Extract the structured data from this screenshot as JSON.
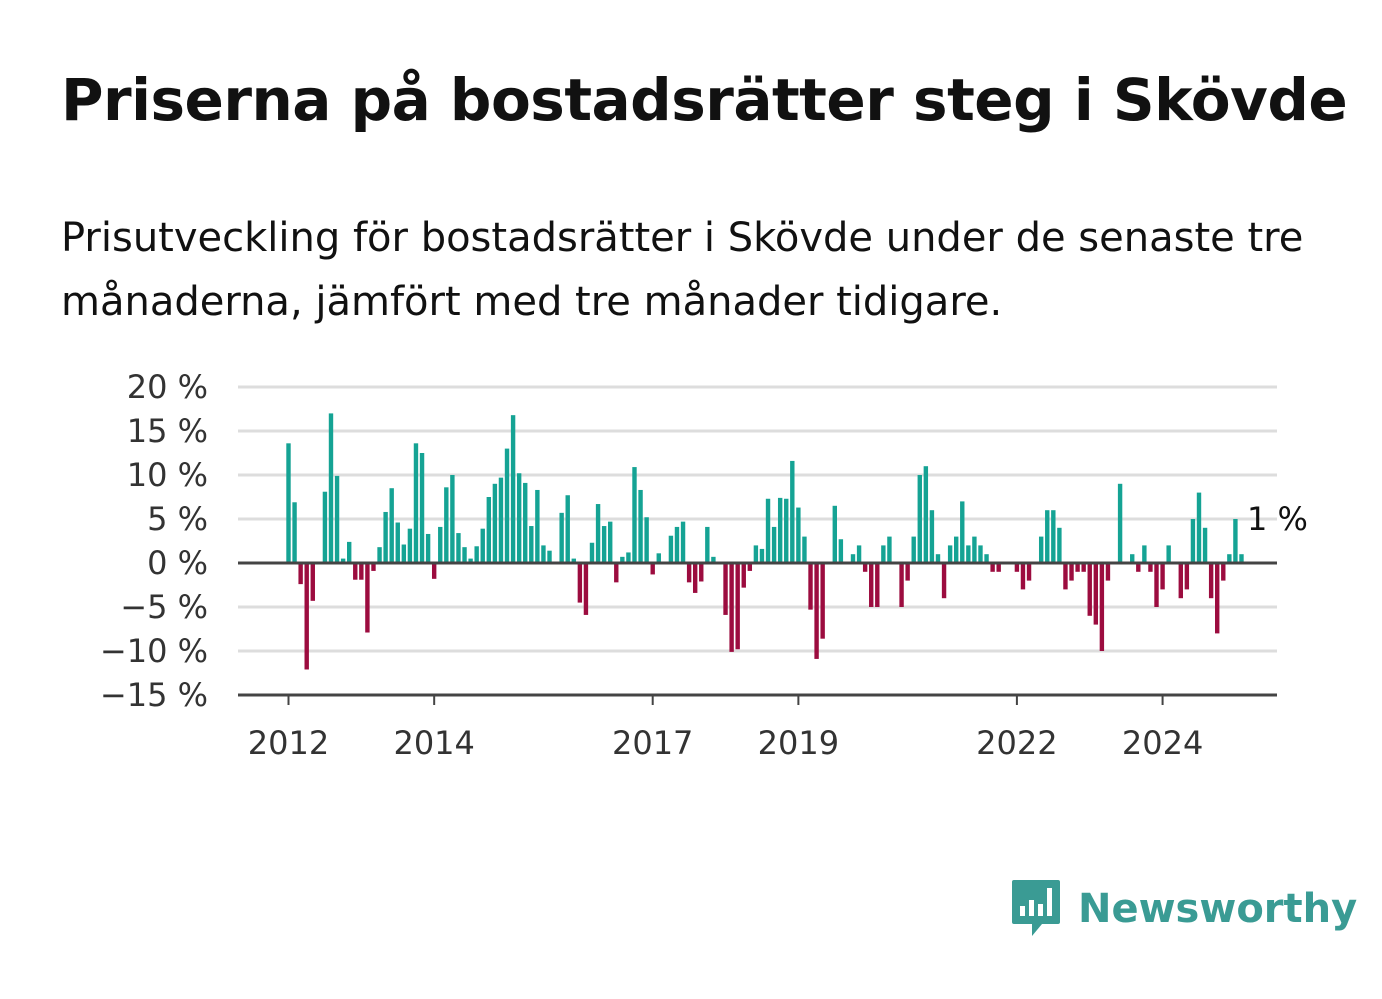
{
  "title": "Priserna på bostadsrätter steg i Skövde",
  "subtitle": "Prisutveckling för bostadsrätter i Skövde under de senaste tre månaderna, jämfört med tre månader tidigare.",
  "brand": {
    "name": "Newsworthy",
    "icon": "newsworthy-logo-icon",
    "color": "#3a9b94"
  },
  "chart_data": {
    "type": "bar",
    "x_start": "2012-01",
    "x_step": "month",
    "y_unit": "%",
    "ylim": [
      -15,
      20
    ],
    "yticks": [
      "20 %",
      "15 %",
      "10 %",
      "5 %",
      "0 %",
      "−5 %",
      "−10 %",
      "−15 %"
    ],
    "ytick_values": [
      20,
      15,
      10,
      5,
      0,
      -5,
      -10,
      -15
    ],
    "xticks": [
      "2012",
      "2014",
      "2017",
      "2019",
      "2022",
      "2024"
    ],
    "xtick_years": [
      2012,
      2014,
      2017,
      2019,
      2022,
      2024
    ],
    "grid": true,
    "legend": "none",
    "positive_color": "#15a394",
    "negative_color": "#9c0c3f",
    "values": [
      13.6,
      6.9,
      -2.4,
      -12.1,
      -4.3,
      0,
      8.1,
      17.0,
      9.9,
      0.5,
      2.4,
      -1.9,
      -1.9,
      -7.9,
      -0.9,
      1.8,
      5.8,
      8.5,
      4.6,
      2.1,
      3.9,
      13.6,
      12.5,
      3.3,
      -1.8,
      4.1,
      8.6,
      10.0,
      3.4,
      1.8,
      0.5,
      1.9,
      3.9,
      7.5,
      9.0,
      9.7,
      13.0,
      16.8,
      10.2,
      9.1,
      4.2,
      8.3,
      2.0,
      1.4,
      0,
      5.7,
      7.7,
      0.5,
      -4.5,
      -5.9,
      2.3,
      6.7,
      4.2,
      4.7,
      -2.2,
      0.7,
      1.2,
      10.9,
      8.3,
      5.2,
      -1.3,
      1.1,
      0,
      3.1,
      4.1,
      4.7,
      -2.2,
      -3.4,
      -2.1,
      4.1,
      0.7,
      0,
      -5.9,
      -10.1,
      -9.8,
      -2.8,
      -0.9,
      2.0,
      1.6,
      7.3,
      4.1,
      7.4,
      7.3,
      11.6,
      6.3,
      3.0,
      -5.3,
      -10.9,
      -8.6,
      0,
      6.5,
      2.7,
      0,
      1.0,
      2.0,
      -1.0,
      -5.0,
      -5.0,
      2.0,
      3.0,
      0,
      -5.0,
      -2.0,
      3.0,
      10.0,
      11.0,
      6.0,
      1.0,
      -4.0,
      2.0,
      3.0,
      7.0,
      2.0,
      3.0,
      2.0,
      1.0,
      -1.0,
      -1.0,
      0,
      0,
      -1.0,
      -3.0,
      -2.0,
      0,
      3.0,
      6.0,
      6.0,
      4.0,
      -3.0,
      -2.0,
      -1.0,
      -1.0,
      -6.0,
      -7.0,
      -10.0,
      -2.0,
      0,
      9.0,
      0,
      1.0,
      -1.0,
      2.0,
      -1.0,
      -5.0,
      -3.0,
      2.0,
      0,
      -4.0,
      -3.0,
      5.0,
      8.0,
      4.0,
      -4.0,
      -8.0,
      -2.0,
      1.0,
      5.0,
      1.0
    ],
    "annotation": {
      "index": 157,
      "text": "1 %"
    }
  }
}
